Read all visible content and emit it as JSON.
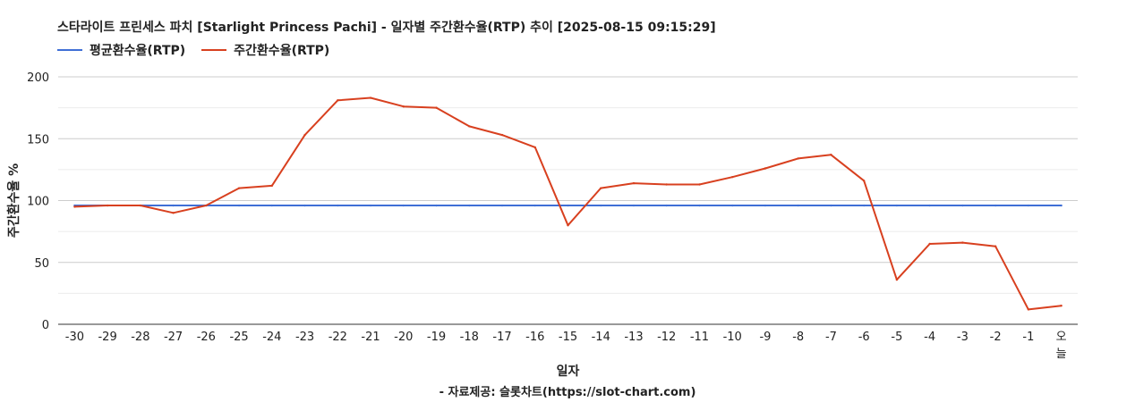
{
  "title": "스타라이트 프린세스 파치 [Starlight Princess Pachi] - 일자별 주간환수율(RTP) 추이 [2025-08-15 09:15:29]",
  "source": "- 자료제공: 슬롯차트(https://slot-chart.com)",
  "colors": {
    "avg": "#3f6fd6",
    "weekly": "#d8401f",
    "grid": "#cccccc",
    "axis": "#333333"
  },
  "chart_data": {
    "type": "line",
    "title": "스타라이트 프린세스 파치 [Starlight Princess Pachi] - 일자별 주간환수율(RTP) 추이 [2025-08-15 09:15:29]",
    "xlabel": "일자",
    "ylabel": "주간환수율 %",
    "ylim": [
      0,
      200
    ],
    "yticks": [
      "0",
      "50",
      "100",
      "150",
      "200"
    ],
    "grid": true,
    "legend_position": "top-left",
    "categories": [
      "-30",
      "-29",
      "-28",
      "-27",
      "-26",
      "-25",
      "-24",
      "-23",
      "-22",
      "-21",
      "-20",
      "-19",
      "-18",
      "-17",
      "-16",
      "-15",
      "-14",
      "-13",
      "-12",
      "-11",
      "-10",
      "-9",
      "-8",
      "-7",
      "-6",
      "-5",
      "-4",
      "-3",
      "-2",
      "-1",
      "오늘"
    ],
    "series": [
      {
        "name": "평균환수율(RTP)",
        "color": "#3f6fd6",
        "values": [
          96,
          96,
          96,
          96,
          96,
          96,
          96,
          96,
          96,
          96,
          96,
          96,
          96,
          96,
          96,
          96,
          96,
          96,
          96,
          96,
          96,
          96,
          96,
          96,
          96,
          96,
          96,
          96,
          96,
          96,
          96
        ]
      },
      {
        "name": "주간환수율(RTP)",
        "color": "#d8401f",
        "values": [
          95,
          96,
          96,
          90,
          96,
          110,
          112,
          153,
          181,
          183,
          176,
          175,
          160,
          153,
          143,
          80,
          110,
          114,
          113,
          113,
          119,
          126,
          134,
          137,
          116,
          36,
          65,
          66,
          63,
          12,
          15
        ]
      }
    ]
  }
}
